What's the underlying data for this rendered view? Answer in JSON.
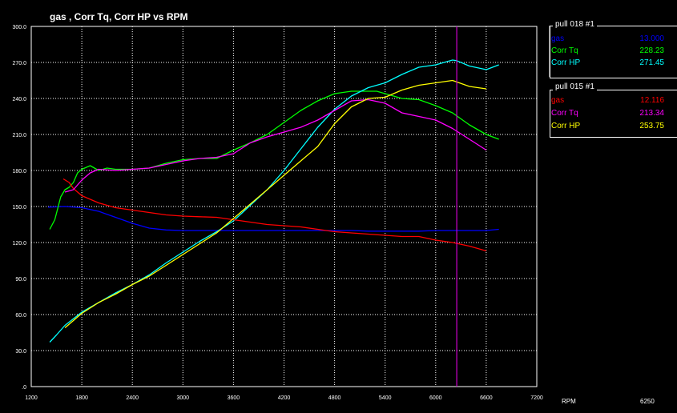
{
  "chart_data": {
    "type": "line",
    "title": "gas , Corr Tq, Corr HP vs RPM",
    "xlabel": "RPM",
    "xlim": [
      1200,
      7200
    ],
    "ylim": [
      0,
      300
    ],
    "x_ticks": [
      "1200",
      "1800",
      "2400",
      "3000",
      "3600",
      "4200",
      "4800",
      "5400",
      "6000",
      "6600",
      "7200"
    ],
    "y_ticks": [
      ".0",
      "30.0",
      "60.0",
      "90.0",
      "120.0",
      "150.0",
      "180.0",
      "210.0",
      "240.0",
      "270.0",
      "300.0"
    ],
    "grid": true,
    "cursor_rpm": 6250,
    "cursor_readout": "6250",
    "cursor_color": "#cc00cc",
    "series": [
      {
        "name": "gas",
        "run": "pull 018",
        "color": "#0000ff",
        "x": [
          1400,
          1600,
          1800,
          2000,
          2200,
          2400,
          2600,
          2800,
          3000,
          3200,
          3400,
          3600,
          3800,
          4000,
          4200,
          4400,
          4600,
          4800,
          5000,
          5200,
          5400,
          5600,
          5800,
          6000,
          6200,
          6400,
          6600,
          6750
        ],
        "y": [
          149.5,
          150,
          149,
          146,
          141,
          136,
          132,
          130.5,
          130,
          130,
          130,
          130,
          130,
          130,
          130,
          130,
          130,
          130,
          130,
          129.5,
          129.5,
          129.5,
          129.5,
          130,
          130,
          130,
          130,
          131
        ]
      },
      {
        "name": "Corr Tq",
        "run": "pull 018",
        "color": "#00ff00",
        "x": [
          1420,
          1480,
          1550,
          1600,
          1650,
          1700,
          1750,
          1800,
          1900,
          1950,
          2000,
          2100,
          2200,
          2400,
          2600,
          2800,
          3000,
          3200,
          3400,
          3600,
          3800,
          4000,
          4200,
          4400,
          4600,
          4800,
          5000,
          5200,
          5300,
          5400,
          5600,
          5800,
          6000,
          6200,
          6400,
          6600,
          6750
        ],
        "y": [
          131,
          139,
          158,
          164,
          166,
          170,
          178,
          181,
          184,
          182,
          180,
          182,
          181,
          181,
          182,
          186,
          189,
          190,
          190,
          197,
          203,
          210,
          220,
          230,
          238,
          244,
          246,
          246,
          246,
          244,
          240,
          239,
          234,
          228,
          218,
          210,
          206
        ]
      },
      {
        "name": "Corr HP",
        "run": "pull 018",
        "color": "#00ffff",
        "x": [
          1420,
          1500,
          1600,
          1800,
          2000,
          2200,
          2400,
          2600,
          2800,
          3000,
          3200,
          3400,
          3600,
          3800,
          4000,
          4200,
          4400,
          4600,
          4800,
          5000,
          5200,
          5400,
          5600,
          5800,
          6000,
          6200,
          6250,
          6400,
          6600,
          6750
        ],
        "y": [
          37,
          43,
          51,
          62,
          70,
          78,
          85,
          93,
          103,
          112,
          121,
          129,
          138,
          151,
          164,
          180,
          198,
          216,
          231,
          242,
          249,
          253,
          260,
          266,
          268,
          272,
          271.45,
          267,
          264,
          268
        ]
      },
      {
        "name": "gas",
        "run": "pull 015",
        "color": "#ff0000",
        "x": [
          1580,
          1650,
          1700,
          1800,
          2000,
          2200,
          2400,
          2600,
          2800,
          3000,
          3200,
          3400,
          3600,
          3800,
          4000,
          4200,
          4400,
          4600,
          4800,
          5000,
          5200,
          5400,
          5600,
          5800,
          6000,
          6200,
          6400,
          6600
        ],
        "y": [
          173,
          170,
          165,
          159,
          153,
          149,
          147,
          145,
          143,
          142,
          141.5,
          141,
          139,
          137,
          135,
          134,
          133,
          131,
          129,
          128,
          127,
          126,
          125,
          125,
          122,
          120,
          117,
          113
        ]
      },
      {
        "name": "Corr Tq",
        "run": "pull 015",
        "color": "#ff00ff",
        "x": [
          1600,
          1700,
          1800,
          1900,
          2000,
          2200,
          2400,
          2600,
          2800,
          3000,
          3200,
          3400,
          3600,
          3800,
          4000,
          4200,
          4400,
          4600,
          4800,
          5000,
          5200,
          5400,
          5600,
          5800,
          6000,
          6200,
          6400,
          6600
        ],
        "y": [
          162,
          164,
          172,
          178,
          181,
          180,
          181,
          182,
          185,
          188,
          190,
          191,
          194,
          203,
          208,
          212,
          216,
          222,
          230,
          238,
          239,
          236,
          228,
          225,
          222,
          215,
          206,
          197
        ]
      },
      {
        "name": "Corr HP",
        "run": "pull 015",
        "color": "#ffff00",
        "x": [
          1600,
          1800,
          2000,
          2200,
          2400,
          2600,
          2800,
          3000,
          3200,
          3400,
          3600,
          3800,
          4000,
          4200,
          4400,
          4600,
          4800,
          5000,
          5200,
          5400,
          5600,
          5800,
          6000,
          6200,
          6400,
          6600
        ],
        "y": [
          49,
          61,
          70,
          77,
          85,
          92,
          101,
          110,
          119,
          128,
          140,
          152,
          164,
          176,
          188,
          200,
          219,
          233,
          240,
          241,
          247,
          251,
          253,
          255,
          250,
          248
        ]
      }
    ]
  },
  "legend": {
    "groups": [
      {
        "label": "pull 018   #1",
        "rows": [
          {
            "name": "gas",
            "value": "13.000",
            "color": "#0000ff"
          },
          {
            "name": "Corr Tq",
            "value": "228.23",
            "color": "#00ff00"
          },
          {
            "name": "Corr HP",
            "value": "271.45",
            "color": "#00ffff"
          }
        ]
      },
      {
        "label": "pull 015   #1",
        "rows": [
          {
            "name": "gas",
            "value": "12.116",
            "color": "#ff0000"
          },
          {
            "name": "Corr Tq",
            "value": "213.34",
            "color": "#ff00ff"
          },
          {
            "name": "Corr HP",
            "value": "253.75",
            "color": "#ffff00"
          }
        ]
      }
    ]
  }
}
